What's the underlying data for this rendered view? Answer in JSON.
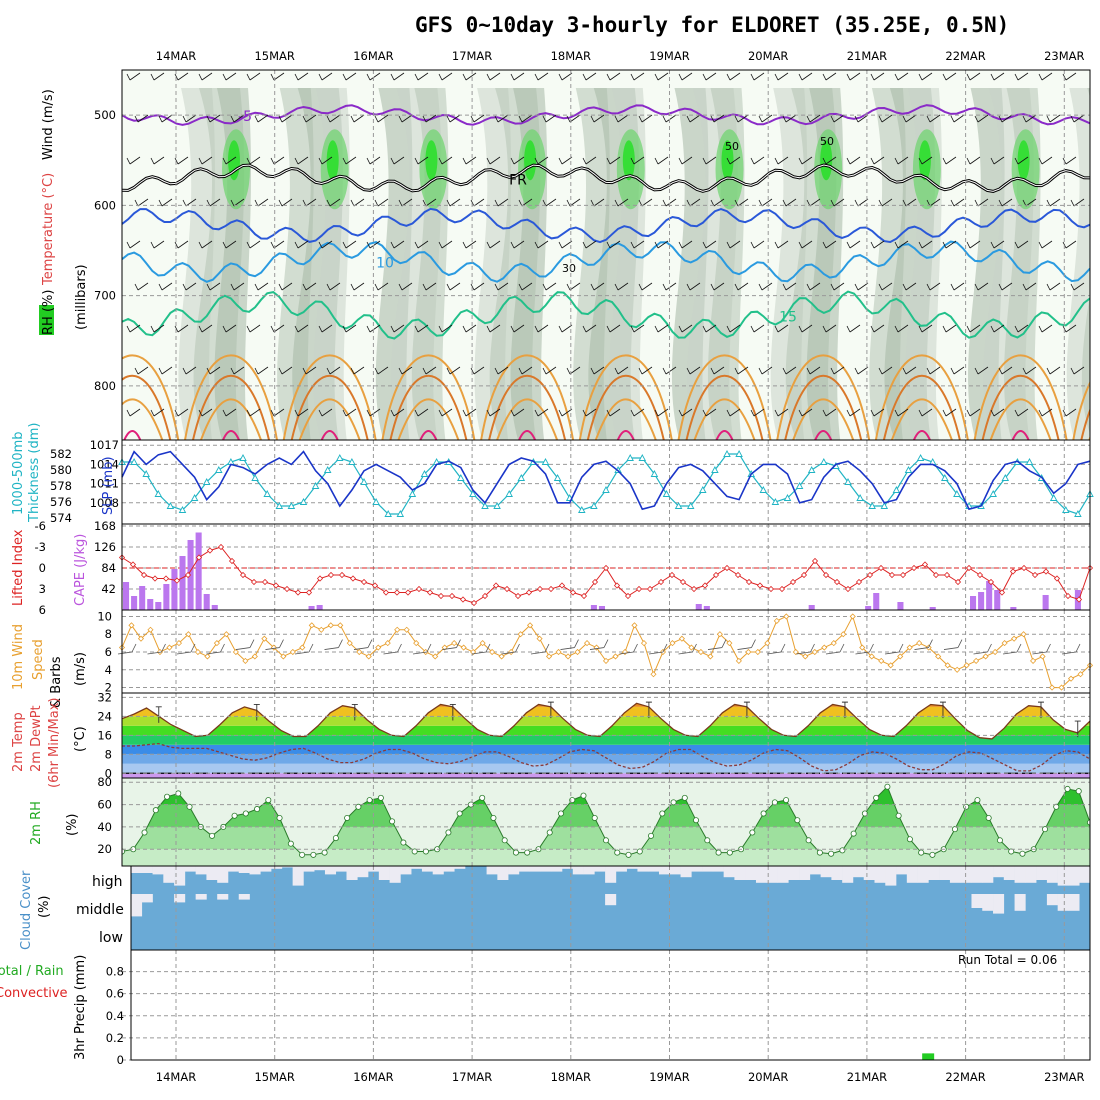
{
  "title": "GFS 0~10day 3-hourly for ELDORET (35.25E, 0.5N)",
  "dates": [
    "14MAR",
    "15MAR",
    "16MAR",
    "17MAR",
    "18MAR",
    "19MAR",
    "20MAR",
    "21MAR",
    "22MAR",
    "23MAR"
  ],
  "colors": {
    "grid": "#9a9a9a",
    "slp": "#1a35c8",
    "thick": "#20b4c4",
    "li": "#dd2222",
    "cape": "#bb77ee",
    "wind": "#e8a030",
    "rh": "#22bb22",
    "cloud_blue": "#6aaad6",
    "cloud_light": "#ecebf3",
    "precip": "#22cc22"
  },
  "chart_data": [
    {
      "id": "upper-air",
      "type": "contour",
      "ylabel": "(millibars)",
      "side_labels": {
        "rh": "RH (%)",
        "temperature": "Temperature (°C)",
        "wind": "Wind (m/s)"
      },
      "yticks": [
        500,
        600,
        700,
        800
      ],
      "yrange_mb": [
        860,
        450
      ],
      "temperature_contours": [
        {
          "label": "-5",
          "value": -5,
          "pressure_mb": 500
        },
        {
          "label": "FR",
          "value": 0,
          "pressure_mb": 570
        },
        {
          "label": "",
          "value": 5,
          "pressure_mb": 622
        },
        {
          "label": "10",
          "value": 10,
          "pressure_mb": 662
        },
        {
          "label": "15",
          "value": 15,
          "pressure_mb": 722
        }
      ],
      "rh_labels": [
        "50",
        "30"
      ]
    },
    {
      "id": "slp-thickness",
      "type": "line",
      "labels": {
        "left1": "1000-500mb",
        "left2": "Thickness (dm)",
        "right": "SLP (mb)"
      },
      "thickness_ticks": [
        582,
        580,
        578,
        576,
        574
      ],
      "slp_ticks": [
        1017,
        1014,
        1011,
        1008
      ],
      "slp_range": [
        1005,
        1017.5
      ],
      "thickness_range": [
        573.5,
        583.5
      ],
      "slp": [
        1012,
        1016,
        1014,
        1015.5,
        1016,
        1014,
        1012,
        1008.5,
        1010.5,
        1014,
        1013.5,
        1012.5,
        1014,
        1015,
        1014,
        1016,
        1013,
        1011,
        1007.5,
        1010,
        1013,
        1014,
        1013,
        1012,
        1010,
        1011,
        1014,
        1014.5,
        1013.5,
        1010,
        1008,
        1011,
        1014,
        1015,
        1014.5,
        1012.5,
        1008,
        1008,
        1012,
        1014,
        1014.5,
        1013,
        1011,
        1007,
        1007.5,
        1011,
        1013.5,
        1014,
        1013,
        1011,
        1009,
        1008.5,
        1012.5,
        1014,
        1014,
        1012.5,
        1008,
        1008.5,
        1012,
        1014,
        1014.5,
        1013,
        1011,
        1008,
        1008.5,
        1012,
        1014,
        1014,
        1013,
        1011,
        1007,
        1007.5,
        1011.5,
        1014,
        1014.5,
        1013,
        1012,
        1009.5,
        1011,
        1014,
        1014.5
      ],
      "thickness": [
        581,
        581,
        579.5,
        577,
        575.5,
        575,
        576.5,
        578.5,
        580,
        581,
        581.5,
        579,
        577,
        575.5,
        575.5,
        576,
        578,
        580,
        581.5,
        581,
        578.5,
        576,
        574.5,
        574.5,
        577,
        579.5,
        581,
        581,
        579,
        577,
        575.5,
        575.5,
        577,
        579,
        581,
        581,
        579,
        576.5,
        575,
        575.5,
        577.5,
        580,
        581.5,
        581.5,
        579.5,
        577,
        575.5,
        575.5,
        577.5,
        580,
        582,
        582,
        579.5,
        577.5,
        576,
        576.5,
        578,
        580,
        581,
        580.5,
        578.5,
        576.5,
        575.5,
        575.5,
        577.5,
        580,
        581.5,
        581,
        579,
        577,
        575.5,
        575.5,
        577,
        579,
        581,
        581,
        579,
        576.5,
        575,
        574.5,
        577
      ]
    },
    {
      "id": "cape-lifted-index",
      "type": "bar+line",
      "labels": {
        "left": "Lifted Index",
        "right": "CAPE (J/kg)"
      },
      "li_ticks": [
        "-6",
        "-3",
        "0",
        "3",
        "6"
      ],
      "cape_ticks": [
        168,
        126,
        84,
        42
      ],
      "cape_range": [
        0,
        168
      ],
      "li_range": [
        -6,
        6
      ],
      "lifted_index": [
        -1.5,
        -0.5,
        1,
        1.5,
        1.5,
        1.8,
        1,
        -1.5,
        -2.5,
        -3,
        -1,
        1,
        2,
        2,
        2.5,
        3,
        3.5,
        3.5,
        1.5,
        1,
        1,
        1.5,
        2,
        2.5,
        3.5,
        3.5,
        3.5,
        3,
        3.5,
        4,
        4,
        4.5,
        5,
        4,
        2.5,
        3,
        4,
        3.5,
        3,
        3,
        2.5,
        3.5,
        4,
        2,
        0,
        2.5,
        4,
        3,
        3,
        2,
        1,
        2,
        3,
        2.5,
        1,
        0,
        1,
        2,
        2.5,
        3,
        3,
        2,
        1,
        -1,
        1,
        2,
        3,
        2,
        1,
        0,
        1,
        1,
        0,
        -0.5,
        1,
        1,
        2,
        0,
        1,
        2,
        3.5,
        0.5,
        0,
        1,
        0.5,
        1.5,
        4,
        4.5,
        0
      ],
      "cape": [
        56,
        28,
        48,
        22,
        16,
        52,
        82,
        108,
        140,
        155,
        32,
        10,
        0,
        0,
        0,
        0,
        0,
        0,
        0,
        10,
        8,
        0,
        0,
        0,
        0,
        0,
        0,
        0,
        0,
        0,
        0,
        0,
        0,
        0,
        0,
        0,
        0,
        0,
        0,
        0,
        0,
        0,
        0,
        0,
        0,
        0,
        0,
        0,
        0,
        0,
        8,
        6,
        0,
        0,
        0,
        0,
        0,
        0,
        8,
        0,
        0,
        0,
        0,
        0,
        0,
        0,
        0,
        0,
        0,
        0,
        0,
        0,
        10,
        0,
        0,
        0,
        0,
        0,
        0,
        0,
        8,
        34,
        0,
        0,
        16,
        0,
        0,
        0,
        0,
        0,
        0,
        0,
        0,
        0,
        0,
        0,
        0,
        0,
        4,
        0,
        0,
        28,
        36,
        58,
        0,
        0,
        0,
        0,
        0,
        0,
        6,
        0,
        0,
        0,
        0,
        0,
        0,
        0,
        40,
        0
      ],
      "cape_bars": [
        [
          0,
          56
        ],
        [
          1,
          28
        ],
        [
          2,
          48
        ],
        [
          3,
          22
        ],
        [
          4,
          16
        ],
        [
          5,
          52
        ],
        [
          6,
          82
        ],
        [
          7,
          108
        ],
        [
          8,
          140
        ],
        [
          9,
          155
        ],
        [
          10,
          32
        ],
        [
          11,
          10
        ],
        [
          23,
          8
        ],
        [
          24,
          10
        ],
        [
          58,
          10
        ],
        [
          59,
          8
        ],
        [
          71,
          12
        ],
        [
          72,
          8
        ],
        [
          85,
          10
        ],
        [
          92,
          8
        ],
        [
          93,
          34
        ],
        [
          96,
          16
        ],
        [
          100,
          6
        ],
        [
          105,
          28
        ],
        [
          106,
          36
        ],
        [
          107,
          58
        ],
        [
          108,
          40
        ],
        [
          110,
          6
        ],
        [
          114,
          30
        ],
        [
          118,
          40
        ]
      ]
    },
    {
      "id": "wind-speed",
      "type": "line",
      "labels": {
        "left1": "10m Wind",
        "left2": "Speed",
        "right": "& Barbs",
        "unit": "(m/s)"
      },
      "yticks": [
        10,
        8,
        6,
        4,
        2
      ],
      "yrange": [
        1.5,
        10.5
      ],
      "speed": [
        6.5,
        9,
        7.5,
        8.5,
        6,
        6.5,
        7,
        8,
        6,
        5.5,
        7,
        8,
        6,
        5,
        5.5,
        7.5,
        6.5,
        5.5,
        6,
        6.5,
        9,
        8.5,
        9,
        9,
        7,
        6,
        5.5,
        6.5,
        7,
        8.5,
        8.5,
        7,
        6,
        5.5,
        6.5,
        7,
        6.5,
        6,
        7,
        6,
        5.5,
        6,
        8,
        9,
        7.5,
        5.5,
        6,
        5.5,
        6,
        7,
        6.5,
        5,
        5.5,
        6,
        9,
        7,
        3.5,
        6,
        7,
        7.5,
        6.5,
        6,
        5.5,
        8,
        7,
        5,
        6,
        6,
        7,
        9.5,
        10,
        6,
        5.5,
        6,
        6.5,
        7,
        8,
        10,
        6.5,
        5.5,
        5,
        4.5,
        5.5,
        6.5,
        7,
        6.5,
        5.5,
        4.5,
        4,
        4.5,
        5,
        5.5,
        6,
        7,
        7.5,
        8,
        5,
        5.5,
        2,
        2,
        3,
        3.5,
        4.5
      ],
      "barb_speed": [
        6,
        6,
        6,
        6,
        6.5,
        6.5,
        6,
        6.5,
        6.5,
        6,
        6,
        6.5,
        6,
        6,
        6,
        6.5,
        6.5,
        6,
        6,
        6,
        6.5,
        6.5,
        6,
        6,
        6,
        6,
        6,
        6.5,
        6.5,
        6,
        6,
        6,
        6
      ]
    },
    {
      "id": "temp-dewpoint",
      "type": "area+line",
      "labels": {
        "left1": "2m Temp",
        "left2": "2m DewPt",
        "left3": "(6hr Min/Max)",
        "unit": "(°C)"
      },
      "yticks": [
        32,
        24,
        16,
        8,
        0
      ],
      "yrange": [
        -2,
        33
      ],
      "temperature": [
        23,
        25,
        27.5,
        24,
        20.5,
        18,
        15.5,
        16,
        20.5,
        25.5,
        28,
        26.5,
        22,
        18,
        15.5,
        15.5,
        20,
        25.5,
        28.5,
        27.5,
        22.5,
        18.5,
        16,
        15.5,
        20,
        25.5,
        29,
        28,
        23,
        18.5,
        16,
        15.5,
        20,
        25.5,
        29,
        28,
        23,
        18.5,
        16,
        15.5,
        20,
        25.5,
        29.5,
        28,
        23,
        18.5,
        16,
        15.5,
        20,
        25.5,
        29,
        28,
        23,
        18.5,
        16,
        15.5,
        20,
        25.5,
        29,
        28,
        23,
        18.5,
        16,
        15.5,
        20,
        25.5,
        29,
        28.5,
        23,
        18,
        15,
        14.5,
        19,
        25,
        28.5,
        28,
        22.5,
        18.5,
        17,
        22
      ],
      "dewpoint": [
        11.5,
        11.5,
        12,
        12.5,
        11,
        10.5,
        10.5,
        10.5,
        9,
        7.5,
        6,
        5.5,
        6.5,
        8.5,
        10,
        10.5,
        8.5,
        6,
        4.5,
        4.5,
        6,
        8.5,
        10,
        10,
        8.5,
        6,
        4.5,
        4,
        5,
        7,
        9,
        9,
        7,
        4.5,
        3,
        3.5,
        6,
        9,
        10,
        9.5,
        6.5,
        3.5,
        2,
        2.5,
        5,
        8.5,
        10,
        10,
        7,
        4.5,
        3,
        3.5,
        5.5,
        8.5,
        10,
        9.5,
        6.5,
        3,
        1,
        1.5,
        4,
        7.5,
        9,
        8.5,
        6,
        3,
        1.5,
        1.5,
        4,
        7.5,
        9,
        8.5,
        6,
        3.5,
        1,
        1,
        3.5,
        7.5,
        9.5,
        9,
        6
      ],
      "max_markers": [
        [
          3,
          28
        ],
        [
          11,
          29
        ],
        [
          19,
          29
        ],
        [
          27,
          29
        ],
        [
          35,
          30
        ],
        [
          43,
          30
        ],
        [
          51,
          30
        ],
        [
          59,
          30
        ],
        [
          67,
          30
        ],
        [
          75,
          30
        ],
        [
          78,
          22
        ]
      ]
    },
    {
      "id": "relative-humidity",
      "type": "area",
      "labels": {
        "left": "2m RH",
        "unit": "(%)"
      },
      "yticks": [
        80,
        60,
        40,
        20
      ],
      "yrange": [
        5,
        82
      ],
      "rh": [
        18,
        20,
        35,
        55,
        67,
        70,
        58,
        40,
        32,
        40,
        50,
        52,
        56,
        64,
        48,
        25,
        15,
        15,
        17,
        30,
        48,
        58,
        64,
        66,
        45,
        26,
        18,
        18,
        20,
        35,
        52,
        60,
        66,
        48,
        28,
        17,
        17,
        20,
        35,
        52,
        64,
        68,
        48,
        28,
        17,
        15,
        18,
        32,
        52,
        62,
        66,
        46,
        28,
        17,
        17,
        20,
        35,
        52,
        62,
        64,
        46,
        28,
        17,
        16,
        19,
        34,
        52,
        66,
        76,
        50,
        29,
        17,
        15,
        20,
        38,
        58,
        64,
        48,
        28,
        18,
        16,
        20,
        38,
        58,
        74,
        72,
        44
      ]
    },
    {
      "id": "cloud-cover",
      "type": "heatmap",
      "labels": {
        "left": "Cloud Cover",
        "unit": "(%)"
      },
      "levels": [
        "high",
        "middle",
        "low"
      ],
      "high": [
        0.25,
        0.25,
        0.3,
        0.6,
        0.7,
        0.2,
        0.3,
        0.5,
        0.6,
        0.2,
        0.25,
        0.3,
        0.2,
        0.1,
        0.05,
        0.7,
        0.2,
        0.15,
        0.3,
        0.2,
        0.5,
        0.4,
        0.2,
        0.5,
        0.6,
        0.3,
        0.1,
        0.2,
        0.3,
        0.2,
        0.1,
        0.0,
        0.0,
        0.3,
        0.5,
        0.3,
        0.2,
        0.2,
        0.2,
        0.2,
        0.1,
        0.3,
        0.3,
        0.2,
        0.6,
        0.2,
        0.1,
        0.2,
        0.2,
        0.3,
        0.3,
        0.4,
        0.2,
        0.2,
        0.2,
        0.4,
        0.5,
        0.5,
        0.6,
        0.6,
        0.6,
        0.5,
        0.5,
        0.3,
        0.4,
        0.5,
        0.6,
        0.4,
        0.5,
        0.6,
        0.7,
        0.3,
        0.6,
        0.6,
        0.5,
        0.5,
        0.6,
        0.6,
        0.6,
        0.6,
        0.4,
        0.5,
        0.6,
        0.6,
        0.5,
        0.6,
        0.7,
        0.7,
        0.6
      ],
      "middle": [
        0.8,
        0.3,
        0.0,
        0.0,
        0.3,
        0.0,
        0.2,
        0.0,
        0.2,
        0.0,
        0.2,
        0.0,
        0.0,
        0.0,
        0.0,
        0.0,
        0.0,
        0.0,
        0.0,
        0.0,
        0.0,
        0.0,
        0.0,
        0.0,
        0.0,
        0.0,
        0.0,
        0.0,
        0.0,
        0.0,
        0.0,
        0.0,
        0.0,
        0.0,
        0.0,
        0.0,
        0.0,
        0.0,
        0.0,
        0.0,
        0.0,
        0.0,
        0.0,
        0.0,
        0.4,
        0.0,
        0.0,
        0.0,
        0.0,
        0.0,
        0.0,
        0.0,
        0.0,
        0.0,
        0.0,
        0.0,
        0.0,
        0.0,
        0.0,
        0.0,
        0.0,
        0.0,
        0.0,
        0.0,
        0.0,
        0.0,
        0.0,
        0.0,
        0.0,
        0.0,
        0.0,
        0.0,
        0.0,
        0.0,
        0.0,
        0.0,
        0.0,
        0.0,
        0.5,
        0.6,
        0.7,
        0.0,
        0.6,
        0.0,
        0.0,
        0.4,
        0.6,
        0.6,
        0.0
      ],
      "low": [
        0.0,
        0.0,
        0.0,
        0.0,
        0.0,
        0.0,
        0.0,
        0.0,
        0.0,
        0.0,
        0.0,
        0.0,
        0.0,
        0.0,
        0.0,
        0.0,
        0.0,
        0.0,
        0.0,
        0.0,
        0.0,
        0.0,
        0.0,
        0.0,
        0.0,
        0.0,
        0.0,
        0.0,
        0.0,
        0.0,
        0.0,
        0.0,
        0.0,
        0.0,
        0.0,
        0.0,
        0.0,
        0.0,
        0.0,
        0.0,
        0.0,
        0.0,
        0.0,
        0.0,
        0.0,
        0.0,
        0.0,
        0.0,
        0.0,
        0.0,
        0.0,
        0.0,
        0.0,
        0.0,
        0.0,
        0.0,
        0.0,
        0.0,
        0.0,
        0.0,
        0.0,
        0.0,
        0.0,
        0.0,
        0.0,
        0.0,
        0.0,
        0.0,
        0.0,
        0.0,
        0.0,
        0.0,
        0.0,
        0.0,
        0.0,
        0.0,
        0.0,
        0.0,
        0.0,
        0.0,
        0.0,
        0.0,
        0.0,
        0.0,
        0.0,
        0.0,
        0.0,
        0.0,
        0.0
      ]
    },
    {
      "id": "precipitation",
      "type": "bar",
      "labels": {
        "left1": "Total / Rain",
        "left2": "Convective",
        "right": "3hr Precip (mm)"
      },
      "run_total": "Run Total = 0.06",
      "yticks": [
        "0.8",
        "0.6",
        "0.4",
        "0.2",
        "0"
      ],
      "yrange": [
        0,
        0.95
      ],
      "bars": [
        [
          66,
          0.06
        ]
      ]
    }
  ]
}
